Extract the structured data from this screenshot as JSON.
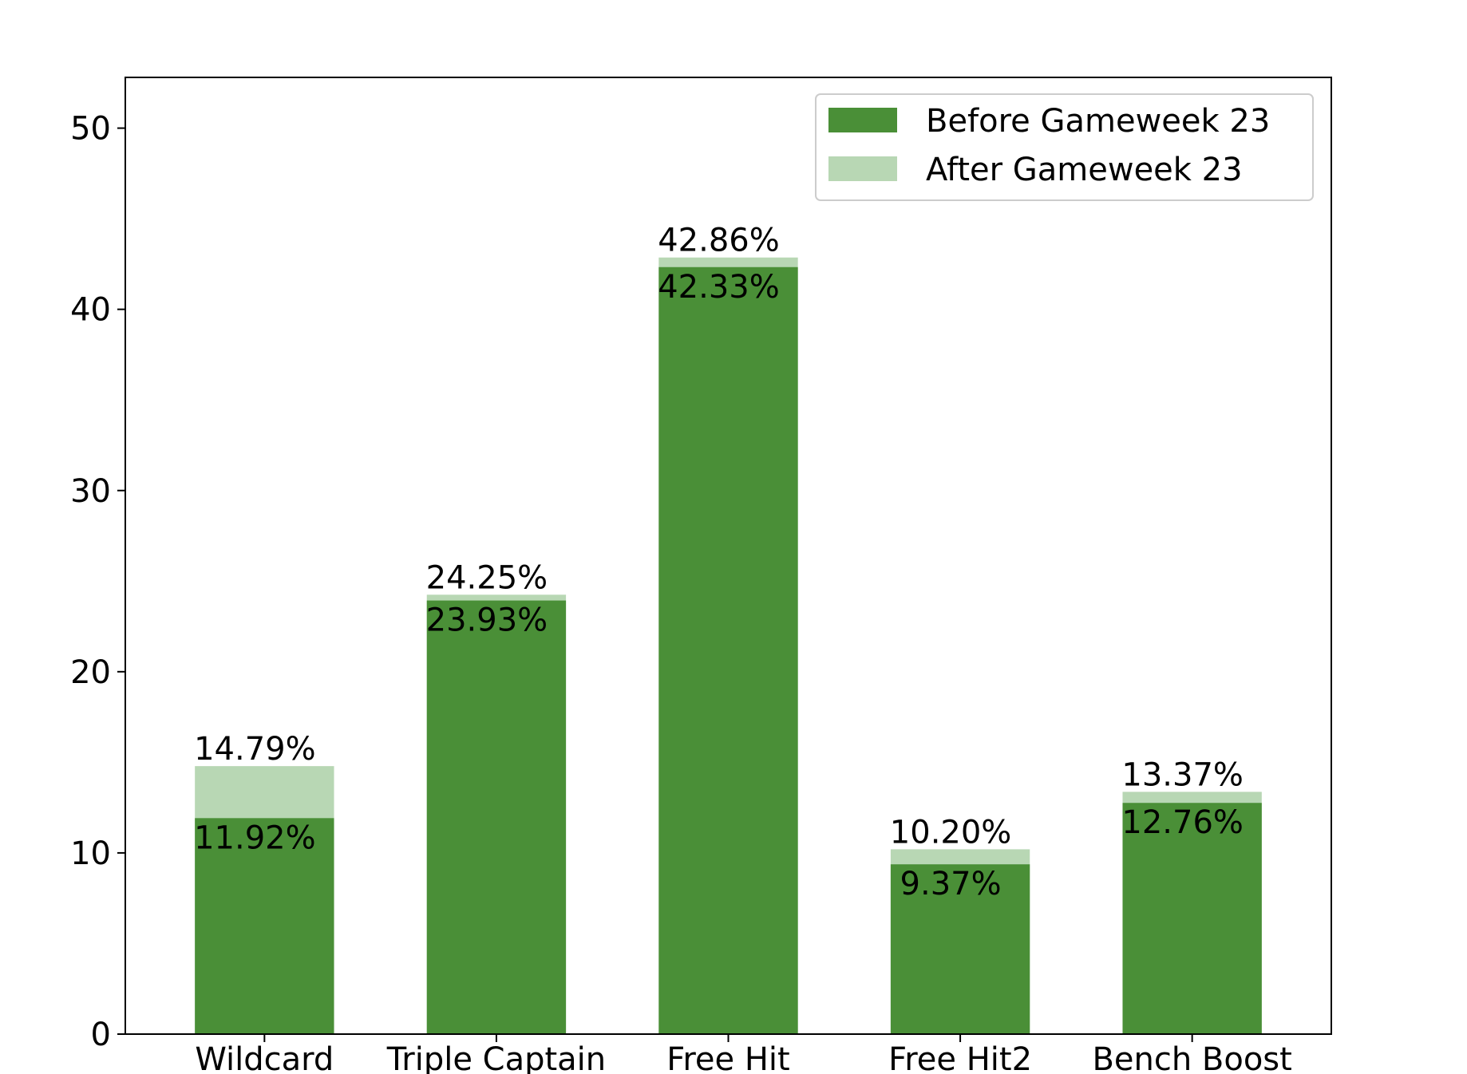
{
  "chart_data": {
    "type": "bar",
    "categories": [
      "Wildcard",
      "Triple Captain",
      "Free Hit",
      "Free Hit2",
      "Bench Boost"
    ],
    "series": [
      {
        "name": "Before Gameweek 23",
        "values": [
          11.92,
          23.93,
          42.33,
          9.37,
          12.76
        ],
        "labels": [
          "11.92%",
          "23.93%",
          "42.33%",
          "9.37%",
          "12.76%"
        ],
        "color": "#4a8f37"
      },
      {
        "name": "After Gameweek 23",
        "values": [
          14.79,
          24.25,
          42.86,
          10.2,
          13.37
        ],
        "labels": [
          "14.79%",
          "24.25%",
          "42.86%",
          "10.20%",
          "13.37%"
        ],
        "color": "#b8d7b4"
      }
    ],
    "ylim": [
      0,
      52.8
    ],
    "yticks": [
      0,
      10,
      20,
      30,
      40,
      50
    ],
    "ytick_labels": [
      "0",
      "10",
      "20",
      "30",
      "40",
      "50"
    ],
    "xlabel": "",
    "ylabel": "",
    "title": "",
    "grid": false,
    "legend_position": "top-right",
    "axis_color": "#000000"
  }
}
